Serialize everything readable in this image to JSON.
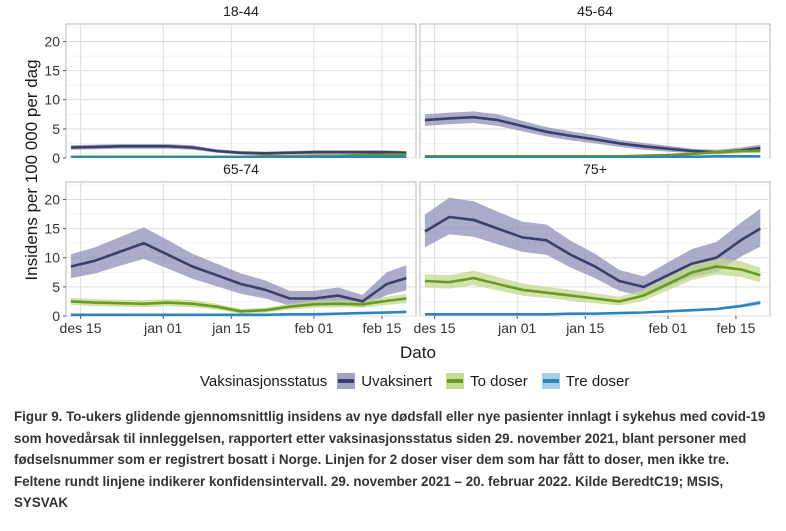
{
  "chart_data": {
    "type": "line",
    "ylabel": "Insidens per 100 000 per dag",
    "xlabel": "Dato",
    "ylim": [
      0,
      23
    ],
    "y_ticks": [
      0,
      5,
      10,
      15,
      20
    ],
    "x_ticks": [
      "des 15",
      "jan 01",
      "jan 15",
      "feb 01",
      "feb 15"
    ],
    "x_tick_days": [
      15,
      32,
      46,
      63,
      77
    ],
    "x_range_days": [
      12,
      84
    ],
    "x_dates": [
      "des 13",
      "des 18",
      "des 23",
      "des 28",
      "jan 02",
      "jan 07",
      "jan 12",
      "jan 17",
      "jan 22",
      "jan 27",
      "feb 01",
      "feb 06",
      "feb 11",
      "feb 16",
      "feb 20"
    ],
    "x_days": [
      13,
      18,
      23,
      28,
      33,
      38,
      43,
      48,
      53,
      58,
      63,
      68,
      73,
      78,
      82
    ],
    "grid": true,
    "legend_title": "Vaksinasjonsstatus",
    "legend_position": "bottom",
    "series_meta": [
      {
        "name": "Uvaksinert",
        "color": "#3c3f6b",
        "band_color": "#8f8fb8"
      },
      {
        "name": "To doser",
        "color": "#6a9a1f",
        "band_color": "#c2d98e"
      },
      {
        "name": "Tre doser",
        "color": "#2a86c0",
        "band_color": "#9cc9e6"
      }
    ],
    "panels": [
      {
        "title": "18-44",
        "series": [
          {
            "name": "Uvaksinert",
            "values": [
              1.8,
              1.9,
              2.0,
              2.0,
              2.0,
              1.8,
              1.2,
              0.9,
              0.8,
              0.9,
              1.0,
              1.0,
              1.0,
              1.0,
              0.9
            ],
            "lower": [
              1.4,
              1.5,
              1.6,
              1.6,
              1.6,
              1.4,
              0.9,
              0.6,
              0.5,
              0.6,
              0.7,
              0.7,
              0.7,
              0.7,
              0.6
            ],
            "upper": [
              2.2,
              2.3,
              2.4,
              2.4,
              2.4,
              2.2,
              1.5,
              1.2,
              1.1,
              1.2,
              1.3,
              1.3,
              1.3,
              1.3,
              1.2
            ]
          },
          {
            "name": "To doser",
            "values": [
              0.2,
              0.2,
              0.2,
              0.2,
              0.2,
              0.2,
              0.2,
              0.2,
              0.3,
              0.3,
              0.4,
              0.4,
              0.5,
              0.6,
              0.6
            ],
            "lower": [
              0.1,
              0.1,
              0.1,
              0.1,
              0.1,
              0.1,
              0.1,
              0.1,
              0.2,
              0.2,
              0.3,
              0.3,
              0.4,
              0.4,
              0.4
            ],
            "upper": [
              0.3,
              0.3,
              0.3,
              0.3,
              0.3,
              0.3,
              0.3,
              0.3,
              0.4,
              0.4,
              0.5,
              0.5,
              0.6,
              0.8,
              0.8
            ]
          },
          {
            "name": "Tre doser",
            "values": [
              0.1,
              0.1,
              0.1,
              0.1,
              0.1,
              0.1,
              0.1,
              0.1,
              0.1,
              0.1,
              0.2,
              0.2,
              0.2,
              0.2,
              0.2
            ],
            "lower": [
              0.0,
              0.0,
              0.0,
              0.0,
              0.0,
              0.0,
              0.0,
              0.0,
              0.0,
              0.0,
              0.1,
              0.1,
              0.1,
              0.1,
              0.1
            ],
            "upper": [
              0.2,
              0.2,
              0.2,
              0.2,
              0.2,
              0.2,
              0.2,
              0.2,
              0.2,
              0.2,
              0.3,
              0.3,
              0.3,
              0.3,
              0.3
            ]
          }
        ]
      },
      {
        "title": "45-64",
        "series": [
          {
            "name": "Uvaksinert",
            "values": [
              6.5,
              6.8,
              7.0,
              6.5,
              5.5,
              4.5,
              3.8,
              3.2,
              2.5,
              2.0,
              1.6,
              1.2,
              1.0,
              1.3,
              1.7
            ],
            "lower": [
              5.5,
              5.8,
              6.0,
              5.5,
              4.6,
              3.7,
              3.0,
              2.5,
              1.9,
              1.4,
              1.1,
              0.8,
              0.6,
              0.8,
              1.1
            ],
            "upper": [
              7.5,
              7.8,
              8.0,
              7.5,
              6.4,
              5.3,
              4.6,
              3.9,
              3.1,
              2.6,
              2.1,
              1.6,
              1.4,
              1.8,
              2.3
            ]
          },
          {
            "name": "To doser",
            "values": [
              0.3,
              0.3,
              0.3,
              0.3,
              0.3,
              0.3,
              0.3,
              0.3,
              0.3,
              0.4,
              0.5,
              0.7,
              1.0,
              1.2,
              1.2
            ],
            "lower": [
              0.2,
              0.2,
              0.2,
              0.2,
              0.2,
              0.2,
              0.2,
              0.2,
              0.2,
              0.3,
              0.3,
              0.5,
              0.7,
              0.8,
              0.8
            ],
            "upper": [
              0.4,
              0.4,
              0.4,
              0.4,
              0.4,
              0.4,
              0.4,
              0.4,
              0.4,
              0.5,
              0.7,
              1.0,
              1.3,
              1.6,
              1.6
            ]
          },
          {
            "name": "Tre doser",
            "values": [
              0.1,
              0.1,
              0.1,
              0.1,
              0.1,
              0.1,
              0.1,
              0.1,
              0.1,
              0.1,
              0.2,
              0.2,
              0.3,
              0.3,
              0.3
            ],
            "lower": [
              0.0,
              0.0,
              0.0,
              0.0,
              0.0,
              0.0,
              0.0,
              0.0,
              0.0,
              0.0,
              0.1,
              0.1,
              0.2,
              0.2,
              0.2
            ],
            "upper": [
              0.2,
              0.2,
              0.2,
              0.2,
              0.2,
              0.2,
              0.2,
              0.2,
              0.2,
              0.2,
              0.3,
              0.3,
              0.4,
              0.4,
              0.4
            ]
          }
        ]
      },
      {
        "title": "65-74",
        "series": [
          {
            "name": "Uvaksinert",
            "values": [
              8.5,
              9.5,
              11.0,
              12.5,
              10.5,
              8.5,
              7.0,
              5.5,
              4.5,
              3.0,
              3.0,
              3.5,
              2.5,
              5.5,
              6.5
            ],
            "lower": [
              6.5,
              7.3,
              8.6,
              9.8,
              8.1,
              6.4,
              5.1,
              3.8,
              3.0,
              1.8,
              1.8,
              2.2,
              1.5,
              3.6,
              4.4
            ],
            "upper": [
              10.6,
              11.8,
              13.5,
              15.2,
              13.0,
              10.7,
              9.0,
              7.3,
              6.1,
              4.3,
              4.3,
              4.9,
              3.6,
              7.5,
              8.7
            ]
          },
          {
            "name": "To doser",
            "values": [
              2.5,
              2.3,
              2.2,
              2.1,
              2.3,
              2.1,
              1.6,
              0.8,
              1.0,
              1.6,
              2.0,
              2.1,
              2.0,
              2.6,
              3.0
            ],
            "lower": [
              1.9,
              1.7,
              1.6,
              1.5,
              1.7,
              1.5,
              1.1,
              0.4,
              0.6,
              1.1,
              1.4,
              1.5,
              1.4,
              1.9,
              2.2
            ],
            "upper": [
              3.1,
              2.9,
              2.8,
              2.7,
              2.9,
              2.7,
              2.1,
              1.2,
              1.4,
              2.1,
              2.6,
              2.7,
              2.6,
              3.3,
              3.8
            ]
          },
          {
            "name": "Tre doser",
            "values": [
              0.2,
              0.2,
              0.2,
              0.2,
              0.2,
              0.2,
              0.2,
              0.2,
              0.2,
              0.3,
              0.3,
              0.4,
              0.5,
              0.6,
              0.7
            ],
            "lower": [
              0.1,
              0.1,
              0.1,
              0.1,
              0.1,
              0.1,
              0.1,
              0.1,
              0.1,
              0.2,
              0.2,
              0.3,
              0.3,
              0.4,
              0.5
            ],
            "upper": [
              0.3,
              0.3,
              0.3,
              0.3,
              0.3,
              0.3,
              0.3,
              0.3,
              0.3,
              0.4,
              0.4,
              0.5,
              0.7,
              0.8,
              0.9
            ]
          }
        ]
      },
      {
        "title": "75+",
        "series": [
          {
            "name": "Uvaksinert",
            "values": [
              14.5,
              17.0,
              16.5,
              15.0,
              13.5,
              13.0,
              10.5,
              8.5,
              6.0,
              5.0,
              7.0,
              9.0,
              10.0,
              13.0,
              15.0
            ],
            "lower": [
              11.8,
              14.0,
              13.6,
              12.3,
              11.0,
              10.5,
              8.3,
              6.5,
              4.3,
              3.4,
              5.0,
              6.7,
              7.5,
              10.2,
              11.9
            ],
            "upper": [
              17.4,
              20.3,
              19.7,
              17.9,
              16.2,
              15.7,
              12.9,
              10.7,
              7.9,
              6.8,
              9.2,
              11.5,
              12.7,
              16.0,
              18.4
            ]
          },
          {
            "name": "To doser",
            "values": [
              6.0,
              5.8,
              6.5,
              5.5,
              4.5,
              4.0,
              3.5,
              3.0,
              2.5,
              3.5,
              5.5,
              7.5,
              8.5,
              8.0,
              7.0
            ],
            "lower": [
              4.9,
              4.7,
              5.3,
              4.4,
              3.5,
              3.1,
              2.6,
              2.2,
              1.8,
              2.6,
              4.4,
              6.2,
              7.1,
              6.7,
              5.8
            ],
            "upper": [
              7.2,
              7.0,
              7.8,
              6.7,
              5.6,
              5.0,
              4.5,
              3.9,
              3.3,
              4.5,
              6.7,
              8.9,
              10.0,
              9.4,
              8.3
            ]
          },
          {
            "name": "Tre doser",
            "values": [
              0.3,
              0.3,
              0.3,
              0.3,
              0.3,
              0.3,
              0.4,
              0.4,
              0.5,
              0.6,
              0.8,
              1.0,
              1.2,
              1.7,
              2.3
            ],
            "lower": [
              0.2,
              0.2,
              0.2,
              0.2,
              0.2,
              0.2,
              0.3,
              0.3,
              0.4,
              0.5,
              0.6,
              0.8,
              1.0,
              1.4,
              1.9
            ],
            "upper": [
              0.4,
              0.4,
              0.4,
              0.4,
              0.4,
              0.4,
              0.5,
              0.5,
              0.6,
              0.7,
              1.0,
              1.2,
              1.4,
              2.0,
              2.7
            ]
          }
        ]
      }
    ]
  },
  "legend": {
    "title": "Vaksinasjonsstatus",
    "items": [
      {
        "label": "Uvaksinert",
        "color": "#3c3f6b",
        "band_color": "#a3a3c6"
      },
      {
        "label": "To doser",
        "color": "#6a9a1f",
        "band_color": "#c6dc96"
      },
      {
        "label": "Tre doser",
        "color": "#2a86c0",
        "band_color": "#a6cfe9"
      }
    ]
  },
  "caption": "Figur 9. To-ukers glidende gjennomsnittlig insidens av nye dødsfall eller nye pasienter innlagt i sykehus med covid-19 som hovedårsak til innleggelsen, rapportert etter vaksinasjonsstatus siden 29. november 2021, blant personer med fødselsnummer som er registrert bosatt i Norge. Linjen for 2 doser viser dem som har fått to doser, men ikke tre. Feltene rundt linjene indikerer konfidensintervall. 29. november 2021 – 20. februar 2022. Kilde BeredtC19; MSIS, SYSVAK"
}
